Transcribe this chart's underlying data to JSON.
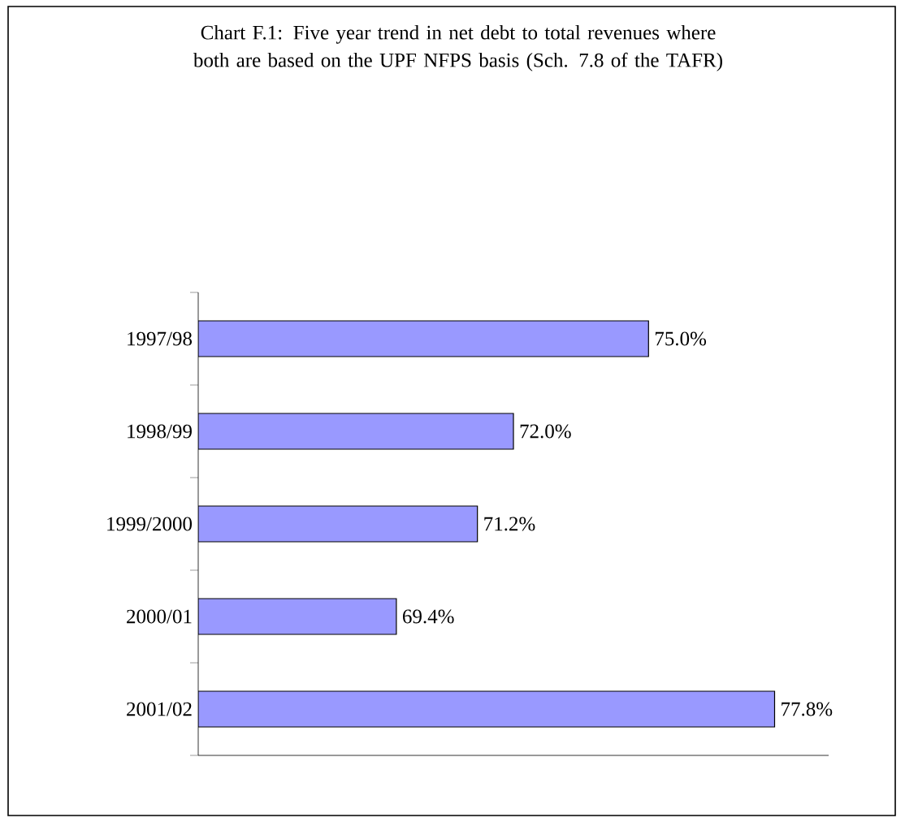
{
  "chart_data": {
    "type": "bar",
    "orientation": "horizontal",
    "title": "Chart F.1: Five year trend in net debt to total revenues where both are based on the UPF NFPS basis (Sch. 7.8 of the TAFR)",
    "categories": [
      "1997/98",
      "1998/99",
      "1999/2000",
      "2000/01",
      "2001/02"
    ],
    "values": [
      75.0,
      72.0,
      71.2,
      69.4,
      77.8
    ],
    "value_labels": [
      "75.0%",
      "72.0%",
      "71.2%",
      "69.4%",
      "77.8%"
    ],
    "color": "#9999ff",
    "xlim": [
      65,
      79
    ],
    "tick_labels": "y",
    "grid": false
  }
}
